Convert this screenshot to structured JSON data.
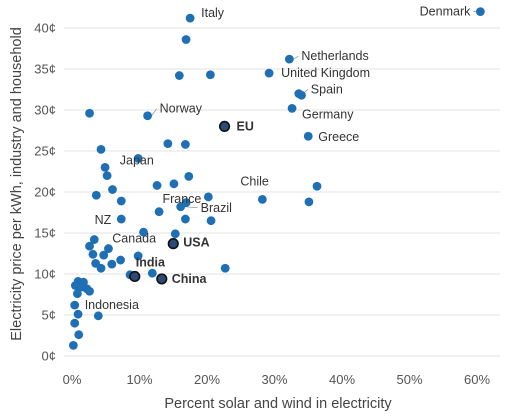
{
  "chart_data": {
    "type": "scatter",
    "xlabel": "Percent solar and wind in electricity",
    "ylabel": "Electricity price per kWh, industry and household",
    "xlim": [
      0,
      60
    ],
    "ylim": [
      0,
      42
    ],
    "x_ticks": [
      {
        "v": 0,
        "label": "0%"
      },
      {
        "v": 10,
        "label": "10%"
      },
      {
        "v": 20,
        "label": "20%"
      },
      {
        "v": 30,
        "label": "30%"
      },
      {
        "v": 40,
        "label": "40%"
      },
      {
        "v": 50,
        "label": "50%"
      },
      {
        "v": 60,
        "label": "60%"
      }
    ],
    "y_ticks": [
      {
        "v": 0,
        "label": "0¢"
      },
      {
        "v": 5,
        "label": "5¢"
      },
      {
        "v": 10,
        "label": "10¢"
      },
      {
        "v": 15,
        "label": "15¢"
      },
      {
        "v": 20,
        "label": "20¢"
      },
      {
        "v": 25,
        "label": "25¢"
      },
      {
        "v": 30,
        "label": "30¢"
      },
      {
        "v": 35,
        "label": "35¢"
      },
      {
        "v": 40,
        "label": "40¢"
      }
    ],
    "grid": "horizontal",
    "colors": {
      "point": "#1f6fb5",
      "highlight_fill": "#2a4a78",
      "highlight_stroke": "#111111",
      "leader": "#9a9a9a",
      "grid": "#e3e3e3"
    },
    "points": [
      {
        "x": 60.5,
        "y": 42.0,
        "label": "Denmark",
        "bold": false,
        "highlight": false
      },
      {
        "x": 17.5,
        "y": 41.2,
        "label": "Italy",
        "bold": false,
        "highlight": false
      },
      {
        "x": 16.9,
        "y": 38.6,
        "label": "",
        "bold": false,
        "highlight": false
      },
      {
        "x": 15.9,
        "y": 34.2,
        "label": "",
        "bold": false,
        "highlight": false
      },
      {
        "x": 20.5,
        "y": 34.3,
        "label": "",
        "bold": false,
        "highlight": false
      },
      {
        "x": 32.2,
        "y": 36.2,
        "label": "Netherlands",
        "bold": false,
        "highlight": false
      },
      {
        "x": 29.2,
        "y": 34.5,
        "label": "United Kingdom",
        "bold": false,
        "highlight": false
      },
      {
        "x": 33.6,
        "y": 32.0,
        "label": "Spain",
        "bold": false,
        "highlight": false
      },
      {
        "x": 34.0,
        "y": 31.8,
        "label": "",
        "bold": false,
        "highlight": false
      },
      {
        "x": 32.6,
        "y": 30.2,
        "label": "Germany",
        "bold": false,
        "highlight": false
      },
      {
        "x": 35.0,
        "y": 26.8,
        "label": "Greece",
        "bold": false,
        "highlight": false
      },
      {
        "x": 2.6,
        "y": 29.6,
        "label": "",
        "bold": false,
        "highlight": false
      },
      {
        "x": 11.2,
        "y": 29.3,
        "label": "Norway",
        "bold": false,
        "highlight": false
      },
      {
        "x": 22.6,
        "y": 28.0,
        "label": "EU",
        "bold": true,
        "highlight": true
      },
      {
        "x": 14.2,
        "y": 25.9,
        "label": "",
        "bold": false,
        "highlight": false
      },
      {
        "x": 16.8,
        "y": 25.8,
        "label": "",
        "bold": false,
        "highlight": false
      },
      {
        "x": 4.3,
        "y": 25.2,
        "label": "",
        "bold": false,
        "highlight": false
      },
      {
        "x": 9.8,
        "y": 24.1,
        "label": "",
        "bold": false,
        "highlight": false
      },
      {
        "x": 4.9,
        "y": 23.0,
        "label": "",
        "bold": false,
        "highlight": false
      },
      {
        "x": 5.2,
        "y": 22.0,
        "label": "",
        "bold": false,
        "highlight": false
      },
      {
        "x": 17.3,
        "y": 21.9,
        "label": "Japan",
        "bold": false,
        "highlight": false
      },
      {
        "x": 15.1,
        "y": 21.0,
        "label": "",
        "bold": false,
        "highlight": false
      },
      {
        "x": 12.6,
        "y": 20.8,
        "label": "",
        "bold": false,
        "highlight": false
      },
      {
        "x": 6.0,
        "y": 20.3,
        "label": "",
        "bold": false,
        "highlight": false
      },
      {
        "x": 3.6,
        "y": 19.6,
        "label": "",
        "bold": false,
        "highlight": false
      },
      {
        "x": 20.2,
        "y": 19.4,
        "label": "France",
        "bold": false,
        "highlight": false
      },
      {
        "x": 28.2,
        "y": 19.1,
        "label": "Chile",
        "bold": false,
        "highlight": false
      },
      {
        "x": 36.3,
        "y": 20.7,
        "label": "",
        "bold": false,
        "highlight": false
      },
      {
        "x": 35.1,
        "y": 18.8,
        "label": "",
        "bold": false,
        "highlight": false
      },
      {
        "x": 7.3,
        "y": 18.9,
        "label": "",
        "bold": false,
        "highlight": false
      },
      {
        "x": 16.1,
        "y": 18.2,
        "label": "Brazil",
        "bold": false,
        "highlight": false
      },
      {
        "x": 16.9,
        "y": 18.7,
        "label": "",
        "bold": false,
        "highlight": false
      },
      {
        "x": 12.9,
        "y": 17.6,
        "label": "",
        "bold": false,
        "highlight": false
      },
      {
        "x": 7.3,
        "y": 16.7,
        "label": "NZ",
        "bold": false,
        "highlight": false
      },
      {
        "x": 16.8,
        "y": 16.7,
        "label": "",
        "bold": false,
        "highlight": false
      },
      {
        "x": 20.6,
        "y": 16.5,
        "label": "",
        "bold": false,
        "highlight": false
      },
      {
        "x": 10.6,
        "y": 15.1,
        "label": "",
        "bold": false,
        "highlight": false
      },
      {
        "x": 15.3,
        "y": 14.9,
        "label": "",
        "bold": false,
        "highlight": false
      },
      {
        "x": 3.3,
        "y": 14.2,
        "label": "Canada",
        "bold": false,
        "highlight": false
      },
      {
        "x": 15.0,
        "y": 13.7,
        "label": "USA",
        "bold": true,
        "highlight": true
      },
      {
        "x": 2.6,
        "y": 13.4,
        "label": "",
        "bold": false,
        "highlight": false
      },
      {
        "x": 5.4,
        "y": 13.1,
        "label": "",
        "bold": false,
        "highlight": false
      },
      {
        "x": 3.1,
        "y": 12.4,
        "label": "",
        "bold": false,
        "highlight": false
      },
      {
        "x": 4.7,
        "y": 12.3,
        "label": "",
        "bold": false,
        "highlight": false
      },
      {
        "x": 9.8,
        "y": 12.2,
        "label": "",
        "bold": false,
        "highlight": false
      },
      {
        "x": 7.2,
        "y": 11.7,
        "label": "",
        "bold": false,
        "highlight": false
      },
      {
        "x": 3.5,
        "y": 11.3,
        "label": "",
        "bold": false,
        "highlight": false
      },
      {
        "x": 5.9,
        "y": 11.2,
        "label": "",
        "bold": false,
        "highlight": false
      },
      {
        "x": 4.3,
        "y": 10.7,
        "label": "",
        "bold": false,
        "highlight": false
      },
      {
        "x": 22.7,
        "y": 10.7,
        "label": "",
        "bold": false,
        "highlight": false
      },
      {
        "x": 11.9,
        "y": 10.1,
        "label": "",
        "bold": false,
        "highlight": false
      },
      {
        "x": 9.3,
        "y": 9.7,
        "label": "India",
        "bold": true,
        "highlight": true
      },
      {
        "x": 8.6,
        "y": 9.9,
        "label": "",
        "bold": false,
        "highlight": false
      },
      {
        "x": 13.3,
        "y": 9.4,
        "label": "China",
        "bold": true,
        "highlight": true
      },
      {
        "x": 0.9,
        "y": 9.1,
        "label": "",
        "bold": false,
        "highlight": false
      },
      {
        "x": 1.7,
        "y": 9.0,
        "label": "",
        "bold": false,
        "highlight": false
      },
      {
        "x": 0.5,
        "y": 8.6,
        "label": "",
        "bold": false,
        "highlight": false
      },
      {
        "x": 1.3,
        "y": 8.4,
        "label": "",
        "bold": false,
        "highlight": false
      },
      {
        "x": 2.2,
        "y": 8.2,
        "label": "",
        "bold": false,
        "highlight": false
      },
      {
        "x": 2.6,
        "y": 7.9,
        "label": "",
        "bold": false,
        "highlight": false
      },
      {
        "x": 0.8,
        "y": 7.6,
        "label": "",
        "bold": false,
        "highlight": false
      },
      {
        "x": 0.4,
        "y": 6.2,
        "label": "Indonesia",
        "bold": false,
        "highlight": false
      },
      {
        "x": 0.9,
        "y": 5.1,
        "label": "",
        "bold": false,
        "highlight": false
      },
      {
        "x": 3.9,
        "y": 4.9,
        "label": "",
        "bold": false,
        "highlight": false
      },
      {
        "x": 0.4,
        "y": 4.0,
        "label": "",
        "bold": false,
        "highlight": false
      },
      {
        "x": 1.0,
        "y": 2.6,
        "label": "",
        "bold": false,
        "highlight": false
      },
      {
        "x": 0.2,
        "y": 1.3,
        "label": "",
        "bold": false,
        "highlight": false
      }
    ]
  }
}
